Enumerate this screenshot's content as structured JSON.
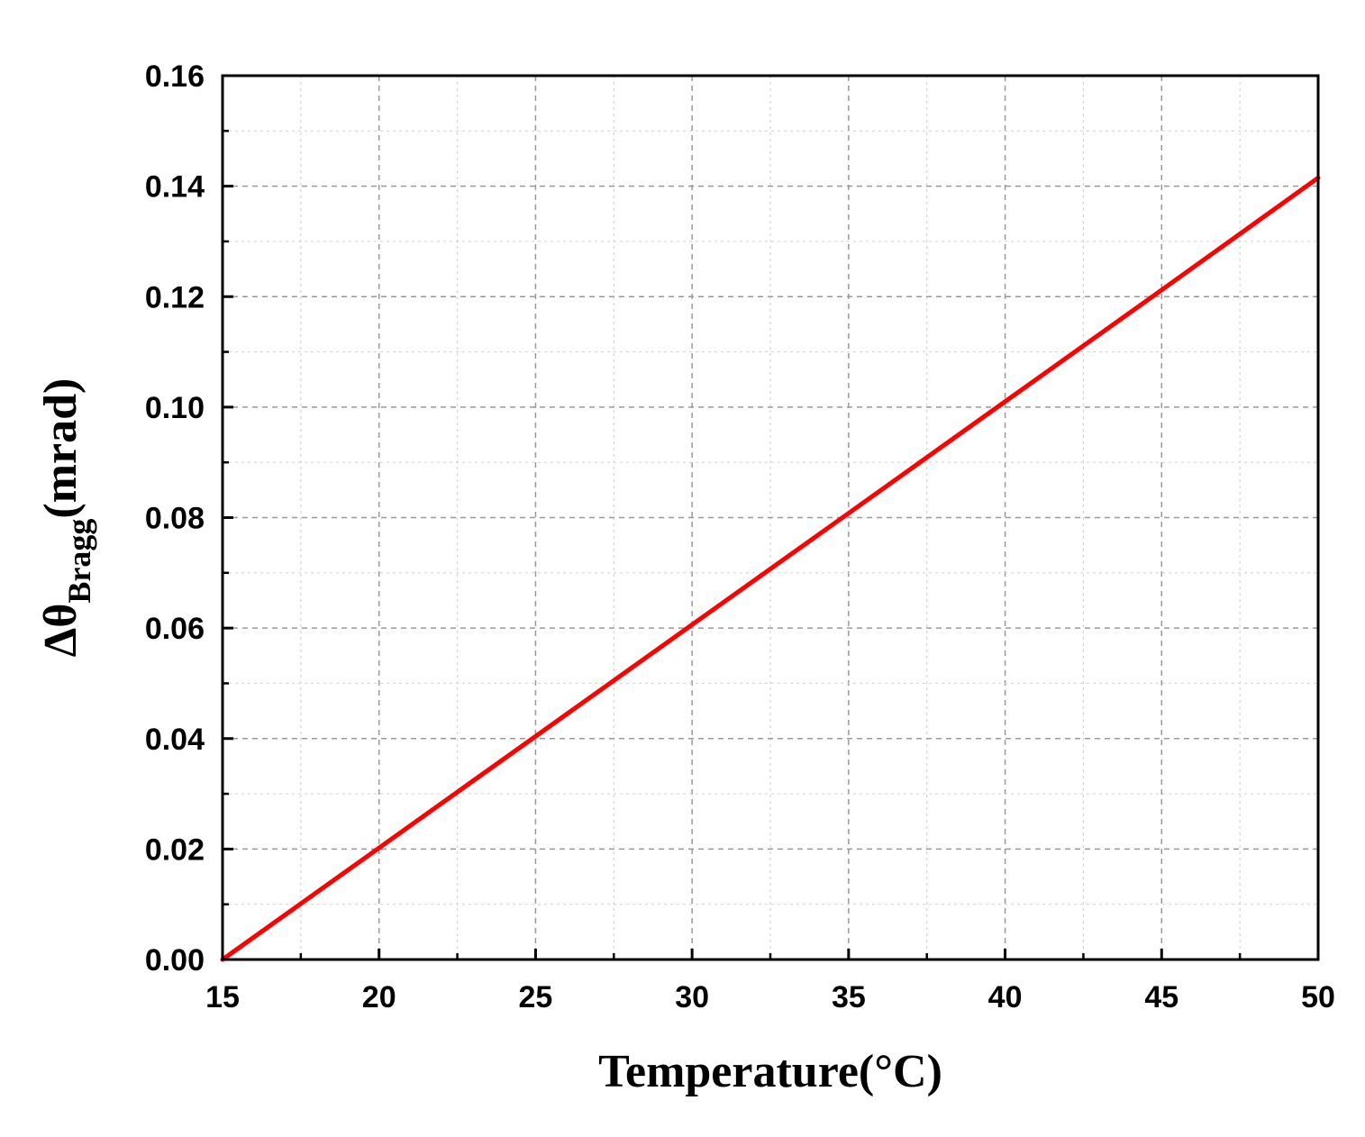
{
  "chart_data": {
    "type": "line",
    "title": "",
    "xlabel": "Temperature(°C)",
    "ylabel": {
      "prefix": "Δθ",
      "subscript": "Bragg",
      "suffix": "(mrad)"
    },
    "xlim": [
      15,
      50
    ],
    "ylim": [
      0,
      0.16
    ],
    "x_ticks": [
      15,
      20,
      25,
      30,
      35,
      40,
      45,
      50
    ],
    "x_tick_labels": [
      "15",
      "20",
      "25",
      "30",
      "35",
      "40",
      "45",
      "50"
    ],
    "y_ticks": [
      0,
      0.02,
      0.04,
      0.06,
      0.08,
      0.1,
      0.12,
      0.14,
      0.16
    ],
    "y_tick_labels": [
      "0.00",
      "0.02",
      "0.04",
      "0.06",
      "0.08",
      "0.10",
      "0.12",
      "0.14",
      "0.16"
    ],
    "grid": true,
    "series": [
      {
        "color": "#ff0000",
        "x": [
          15,
          20,
          25,
          30,
          35,
          40,
          45,
          50
        ],
        "y": [
          0.0,
          0.0202,
          0.0404,
          0.0606,
          0.0808,
          0.101,
          0.1212,
          0.1415
        ]
      }
    ]
  }
}
